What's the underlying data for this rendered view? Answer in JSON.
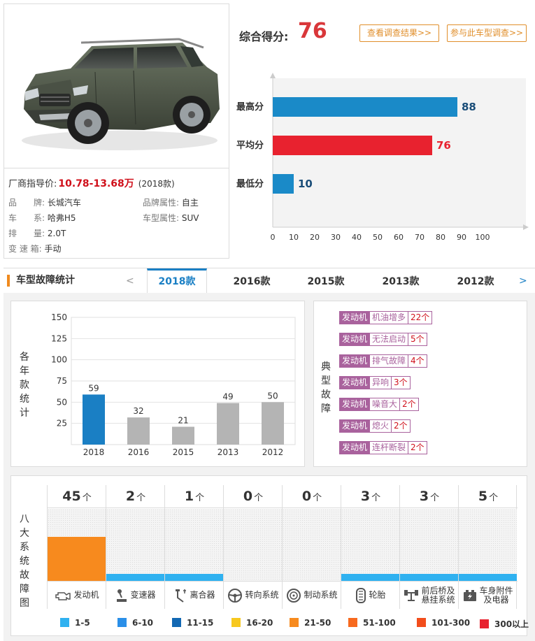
{
  "car": {
    "price_label": "厂商指导价:",
    "price": "10.78-13.68万",
    "model_year": "(2018款)",
    "specs": [
      {
        "label": "品　　牌:",
        "value": "长城汽车"
      },
      {
        "label": "品牌属性:",
        "value": "自主"
      },
      {
        "label": "车　　系:",
        "value": "哈弗H5"
      },
      {
        "label": "车型属性:",
        "value": "SUV"
      },
      {
        "label": "排　　量:",
        "value": "2.0T"
      },
      {
        "label": "变 速 箱:",
        "value": "手动"
      }
    ]
  },
  "score": {
    "label": "综合得分:",
    "value": "76",
    "btn_view": "查看调查结果>>",
    "btn_join": "参与此车型调查>>"
  },
  "colors": {
    "max": "#1a8ac8",
    "avg": "#e8222f",
    "min": "#1a8ac8",
    "current_year": "#1a7fc4",
    "other_year": "#b4b4b4",
    "engine_fill": "#f78a1e",
    "low_fill": "#2fb1f0",
    "tag": "#a9629d"
  },
  "tabs": {
    "title": "车型故障统计",
    "prev": "<",
    "next": ">",
    "items": [
      "2018款",
      "2016款",
      "2015款",
      "2013款",
      "2012款"
    ]
  },
  "year_chart_label": "各年款统计",
  "faults_label": "典型故障",
  "faults": [
    {
      "system": "发动机",
      "name": "机油增多",
      "count": "22个"
    },
    {
      "system": "发动机",
      "name": "无法启动",
      "count": "5个"
    },
    {
      "system": "发动机",
      "name": "排气故障",
      "count": "4个"
    },
    {
      "system": "发动机",
      "name": "异响",
      "count": "3个"
    },
    {
      "system": "发动机",
      "name": "噪音大",
      "count": "2个"
    },
    {
      "system": "发动机",
      "name": "熄火",
      "count": "2个"
    },
    {
      "system": "发动机",
      "name": "连杆断裂",
      "count": "2个"
    }
  ],
  "systems_label": "八大系统故障图",
  "systems_unit": "个",
  "chart_data": [
    {
      "type": "bar",
      "orientation": "horizontal",
      "categories": [
        "最高分",
        "平均分",
        "最低分"
      ],
      "values": [
        88,
        76,
        10
      ],
      "xlim": [
        0,
        100
      ],
      "xticks": [
        0,
        10,
        20,
        30,
        40,
        50,
        60,
        70,
        80,
        90,
        100
      ]
    },
    {
      "type": "bar",
      "categories": [
        "2018",
        "2016",
        "2015",
        "2013",
        "2012"
      ],
      "values": [
        59,
        32,
        21,
        49,
        50
      ],
      "ylim": [
        0,
        150
      ],
      "yticks": [
        25,
        50,
        75,
        100,
        125,
        150
      ]
    },
    {
      "type": "bar",
      "categories": [
        "发动机",
        "变速器",
        "离合器",
        "转向系统",
        "制动系统",
        "轮胎",
        "前后桥及悬挂系统",
        "车身附件及电器"
      ],
      "values": [
        45,
        2,
        1,
        0,
        0,
        3,
        3,
        5
      ],
      "legend": [
        {
          "label": "1-5",
          "color": "#2fb1f0"
        },
        {
          "label": "6-10",
          "color": "#2a8fe8"
        },
        {
          "label": "11-15",
          "color": "#1268b3"
        },
        {
          "label": "16-20",
          "color": "#f7c81e"
        },
        {
          "label": "21-50",
          "color": "#f78a1e"
        },
        {
          "label": "51-100",
          "color": "#f7691e"
        },
        {
          "label": "101-300",
          "color": "#f24d1c"
        },
        {
          "label": "300以上",
          "color": "#e8222f"
        }
      ]
    }
  ]
}
